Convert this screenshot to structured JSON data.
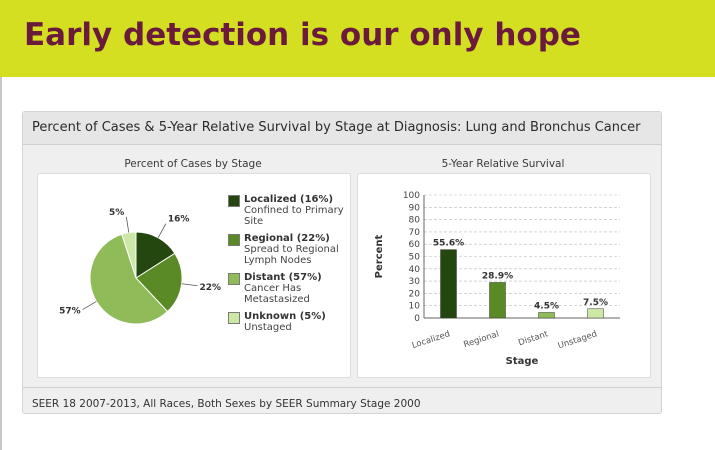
{
  "slide": {
    "title": "Early detection is our only hope"
  },
  "panel": {
    "title": "Percent of Cases & 5-Year Relative Survival by Stage at Diagnosis: Lung and Bronchus Cancer",
    "footer": "SEER 18 2007-2013, All Races, Both Sexes by SEER Summary Stage 2000"
  },
  "pie_chart": {
    "subtitle": "Percent of Cases by Stage",
    "legend": [
      {
        "name": "Localized (16%)",
        "desc": "Confined to Primary Site",
        "color": "#24470f"
      },
      {
        "name": "Regional (22%)",
        "desc": "Spread to Regional Lymph Nodes",
        "color": "#5a8a25"
      },
      {
        "name": "Distant (57%)",
        "desc": "Cancer Has Metastasized",
        "color": "#8fbc58"
      },
      {
        "name": "Unknown (5%)",
        "desc": "Unstaged",
        "color": "#cde8a6"
      }
    ]
  },
  "bar_chart": {
    "subtitle": "5-Year Relative Survival"
  },
  "colors": {
    "banner": "#d5df22",
    "title_text": "#6a1b3c",
    "localized": "#24470f",
    "regional": "#5a8a25",
    "distant": "#8fbc58",
    "unknown": "#cde8a6"
  },
  "chart_data": [
    {
      "type": "pie",
      "title": "Percent of Cases by Stage",
      "categories": [
        "Localized",
        "Regional",
        "Distant",
        "Unknown"
      ],
      "values": [
        16,
        22,
        57,
        5
      ],
      "labels": [
        "16%",
        "22%",
        "57%",
        "5%"
      ],
      "colors": [
        "#24470f",
        "#5a8a25",
        "#8fbc58",
        "#cde8a6"
      ],
      "legend": "right"
    },
    {
      "type": "bar",
      "title": "5-Year Relative Survival",
      "categories": [
        "Localized",
        "Regional",
        "Distant",
        "Unstaged"
      ],
      "values": [
        55.6,
        28.9,
        4.5,
        7.5
      ],
      "labels": [
        "55.6%",
        "28.9%",
        "4.5%",
        "7.5%"
      ],
      "colors": [
        "#24470f",
        "#5a8a25",
        "#8fbc58",
        "#cde8a6"
      ],
      "xlabel": "Stage",
      "ylabel": "Percent",
      "ylim": [
        0,
        100
      ],
      "yticks": [
        "0",
        "10",
        "20",
        "30",
        "40",
        "50",
        "60",
        "70",
        "80",
        "90",
        "100"
      ],
      "grid": true
    }
  ]
}
